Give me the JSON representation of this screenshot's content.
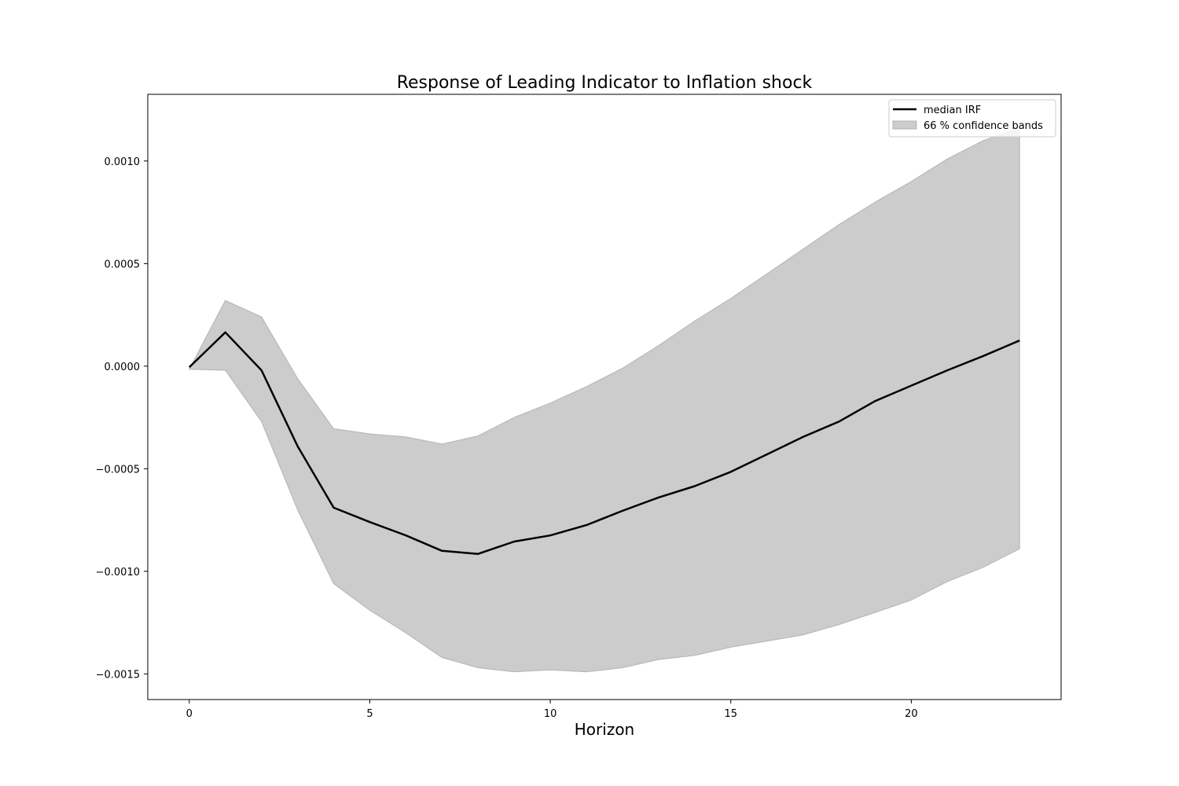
{
  "chart_data": {
    "type": "line",
    "title": "Response of Leading Indicator to Inflation shock",
    "xlabel": "Horizon",
    "ylabel": "",
    "xlim": [
      -1.15,
      24.15
    ],
    "ylim": [
      -0.001625,
      0.001325
    ],
    "xticks": [
      0,
      5,
      10,
      15,
      20
    ],
    "xtick_labels": [
      "0",
      "5",
      "10",
      "15",
      "20"
    ],
    "yticks": [
      -0.0015,
      -0.001,
      -0.0005,
      0.0,
      0.0005,
      0.001
    ],
    "ytick_labels": [
      "−0.0015",
      "−0.0010",
      "−0.0005",
      "0.0000",
      "0.0005",
      "0.0010"
    ],
    "grid": false,
    "legend_position": "top-right",
    "x": [
      0,
      1,
      2,
      3,
      4,
      5,
      6,
      7,
      8,
      9,
      10,
      11,
      12,
      13,
      14,
      15,
      16,
      17,
      18,
      19,
      20,
      21,
      22,
      23
    ],
    "series": [
      {
        "name": "median IRF",
        "kind": "line",
        "color": "#000000",
        "values": [
          -5e-06,
          0.000165,
          -2e-05,
          -0.00039,
          -0.00069,
          -0.00076,
          -0.000825,
          -0.0009,
          -0.000915,
          -0.000855,
          -0.000825,
          -0.000775,
          -0.000705,
          -0.00064,
          -0.000585,
          -0.000515,
          -0.00043,
          -0.000345,
          -0.00027,
          -0.00017,
          -9.5e-05,
          -2e-05,
          5e-05,
          0.000125
        ]
      },
      {
        "name": "66 % confidence bands",
        "kind": "band",
        "color": "#cccccc",
        "edge_color": "#b3b3b3",
        "lower": [
          -1.5e-05,
          -2e-05,
          -0.00027,
          -0.0007,
          -0.00106,
          -0.00119,
          -0.0013,
          -0.00142,
          -0.00147,
          -0.00149,
          -0.00148,
          -0.00149,
          -0.00147,
          -0.00143,
          -0.00141,
          -0.00137,
          -0.00134,
          -0.00131,
          -0.00126,
          -0.0012,
          -0.00114,
          -0.00105,
          -0.00098,
          -0.00089
        ],
        "upper": [
          -1.5e-05,
          0.00032,
          0.00024,
          -6e-05,
          -0.000305,
          -0.00033,
          -0.000345,
          -0.00038,
          -0.00034,
          -0.00025,
          -0.00018,
          -0.0001,
          -1e-05,
          0.0001,
          0.00022,
          0.00033,
          0.00045,
          0.00057,
          0.00069,
          0.0008,
          0.0009,
          0.00101,
          0.0011,
          0.00116
        ]
      }
    ]
  }
}
